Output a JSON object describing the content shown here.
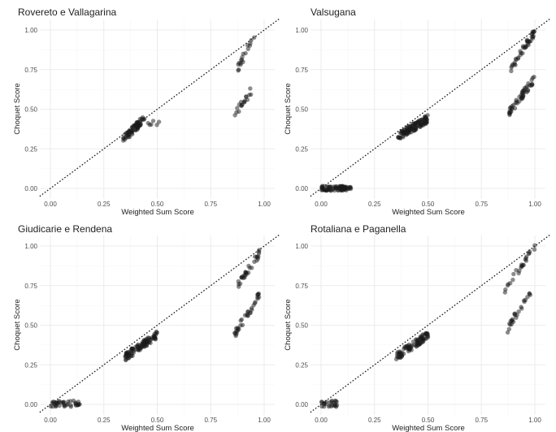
{
  "chart_data": [
    {
      "type": "scatter",
      "title": "Rovereto e Vallagarina",
      "xlabel": "Weighted Sum Score",
      "ylabel": "Choquet Score",
      "xlim": [
        0,
        1
      ],
      "ylim": [
        0,
        1
      ],
      "xticks": [
        "0.00",
        "0.25",
        "0.50",
        "0.75",
        "1.00"
      ],
      "yticks": [
        "0.00",
        "0.25",
        "0.50",
        "0.75",
        "1.00"
      ],
      "reference_line": "y = x (dotted)",
      "grid": true,
      "clusters": [
        {
          "x": [
            0.34,
            0.44
          ],
          "y": [
            0.31,
            0.44
          ],
          "n": 70,
          "trend": "rising"
        },
        {
          "x": [
            0.45,
            0.51
          ],
          "y": [
            0.39,
            0.43
          ],
          "n": 6,
          "trend": "flat"
        },
        {
          "x": [
            0.87,
            0.96
          ],
          "y": [
            0.74,
            0.98
          ],
          "n": 18,
          "trend": "rising"
        },
        {
          "x": [
            0.86,
            0.94
          ],
          "y": [
            0.46,
            0.62
          ],
          "n": 18,
          "trend": "rising"
        }
      ]
    },
    {
      "type": "scatter",
      "title": "Valsugana",
      "xlabel": "Weighted Sum Score",
      "ylabel": "Choquet Score",
      "xlim": [
        0,
        1
      ],
      "ylim": [
        0,
        1
      ],
      "xticks": [
        "0.00",
        "0.25",
        "0.50",
        "0.75",
        "1.00"
      ],
      "yticks": [
        "0.00",
        "0.25",
        "0.50",
        "0.75",
        "1.00"
      ],
      "reference_line": "y = x (dotted)",
      "grid": true,
      "clusters": [
        {
          "x": [
            0.0,
            0.14
          ],
          "y": [
            -0.01,
            0.01
          ],
          "n": 80,
          "trend": "flat"
        },
        {
          "x": [
            0.36,
            0.5
          ],
          "y": [
            0.33,
            0.44
          ],
          "n": 110,
          "trend": "rising"
        },
        {
          "x": [
            0.88,
            1.0
          ],
          "y": [
            0.74,
            0.99
          ],
          "n": 40,
          "trend": "rising"
        },
        {
          "x": [
            0.88,
            1.0
          ],
          "y": [
            0.48,
            0.7
          ],
          "n": 50,
          "trend": "rising"
        }
      ]
    },
    {
      "type": "scatter",
      "title": "Giudicarie e Rendena",
      "xlabel": "Weighted Sum Score",
      "ylabel": "Choquet Score",
      "xlim": [
        0,
        1
      ],
      "ylim": [
        0,
        1
      ],
      "xticks": [
        "0.00",
        "0.25",
        "0.50",
        "0.75",
        "1.00"
      ],
      "yticks": [
        "0.00",
        "0.25",
        "0.50",
        "0.75",
        "1.00"
      ],
      "reference_line": "y = x (dotted)",
      "grid": true,
      "clusters": [
        {
          "x": [
            0.0,
            0.14
          ],
          "y": [
            -0.01,
            0.02
          ],
          "n": 40,
          "trend": "flat"
        },
        {
          "x": [
            0.35,
            0.5
          ],
          "y": [
            0.3,
            0.44
          ],
          "n": 100,
          "trend": "rising"
        },
        {
          "x": [
            0.86,
            0.98
          ],
          "y": [
            0.72,
            0.96
          ],
          "n": 30,
          "trend": "rising"
        },
        {
          "x": [
            0.86,
            0.98
          ],
          "y": [
            0.44,
            0.7
          ],
          "n": 35,
          "trend": "rising"
        }
      ]
    },
    {
      "type": "scatter",
      "title": "Rotaliana e Paganella",
      "xlabel": "Weighted Sum Score",
      "ylabel": "Choquet Score",
      "xlim": [
        0,
        1
      ],
      "ylim": [
        0,
        1
      ],
      "xticks": [
        "0.00",
        "0.25",
        "0.50",
        "0.75",
        "1.00"
      ],
      "yticks": [
        "0.00",
        "0.25",
        "0.50",
        "0.75",
        "1.00"
      ],
      "reference_line": "y = x (dotted)",
      "grid": true,
      "clusters": [
        {
          "x": [
            0.0,
            0.08
          ],
          "y": [
            -0.01,
            0.02
          ],
          "n": 25,
          "trend": "flat"
        },
        {
          "x": [
            0.35,
            0.5
          ],
          "y": [
            0.3,
            0.44
          ],
          "n": 90,
          "trend": "rising"
        },
        {
          "x": [
            0.86,
            1.0
          ],
          "y": [
            0.73,
            0.99
          ],
          "n": 25,
          "trend": "rising"
        },
        {
          "x": [
            0.86,
            0.98
          ],
          "y": [
            0.45,
            0.72
          ],
          "n": 25,
          "trend": "rising"
        }
      ]
    }
  ]
}
